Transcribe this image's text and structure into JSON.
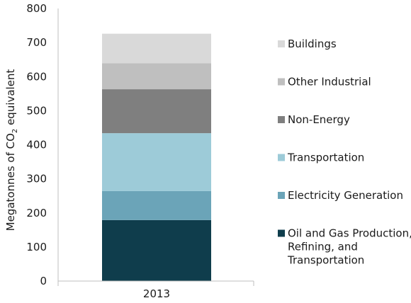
{
  "chart_data": {
    "type": "bar",
    "stacked": true,
    "categories": [
      "2013"
    ],
    "ylabel_main": "Megatonnes of CO",
    "ylabel_sub": "2",
    "ylabel_tail": " equivalent",
    "ylim": [
      0,
      800
    ],
    "yticks": [
      "0",
      "100",
      "200",
      "300",
      "400",
      "500",
      "600",
      "700",
      "800"
    ],
    "grid": false,
    "legend_placement": "right",
    "series": [
      {
        "name": "Oil and Gas Production, Refining, and Transportation",
        "legend_lines": [
          "Oil and Gas Production,",
          "Refining, and",
          "Transportation"
        ],
        "values": [
          179
        ],
        "color": "#0f3d4c"
      },
      {
        "name": "Electricity Generation",
        "legend_lines": [
          "Electricity Generation"
        ],
        "values": [
          85
        ],
        "color": "#6ba4b8"
      },
      {
        "name": "Transportation",
        "legend_lines": [
          "Transportation"
        ],
        "values": [
          170
        ],
        "color": "#9dcbd8"
      },
      {
        "name": "Non-Energy",
        "legend_lines": [
          "Non-Energy"
        ],
        "values": [
          129
        ],
        "color": "#7f7f7f"
      },
      {
        "name": "Other Industrial",
        "legend_lines": [
          "Other Industrial"
        ],
        "values": [
          76
        ],
        "color": "#bfbfbf"
      },
      {
        "name": "Buildings",
        "legend_lines": [
          "Buildings"
        ],
        "values": [
          87
        ],
        "color": "#d9d9d9"
      }
    ]
  }
}
